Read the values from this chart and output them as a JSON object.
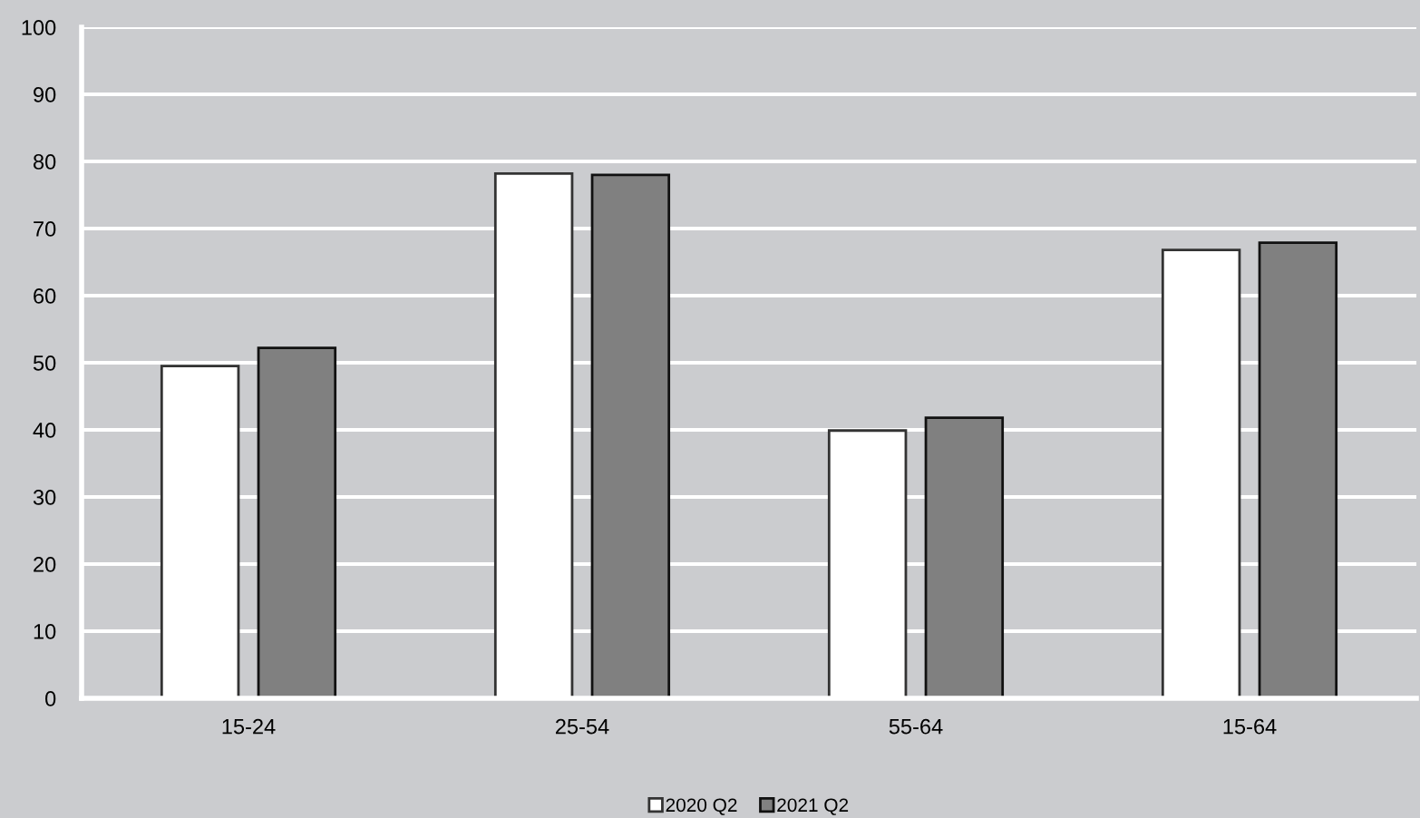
{
  "chart_data": {
    "type": "bar",
    "categories": [
      "15-24",
      "25-54",
      "55-64",
      "15-64"
    ],
    "series": [
      {
        "name": "2020 Q2",
        "color": "#ffffff",
        "values": [
          49.5,
          78.2,
          39.9,
          66.8
        ]
      },
      {
        "name": "2021 Q2",
        "color": "#808080",
        "values": [
          52.2,
          78.0,
          41.8,
          67.9
        ]
      }
    ],
    "ylim": [
      0,
      100
    ],
    "yticks": [
      0,
      10,
      20,
      30,
      40,
      50,
      60,
      70,
      80,
      90,
      100
    ],
    "grid": "y",
    "legend": "bottom"
  }
}
